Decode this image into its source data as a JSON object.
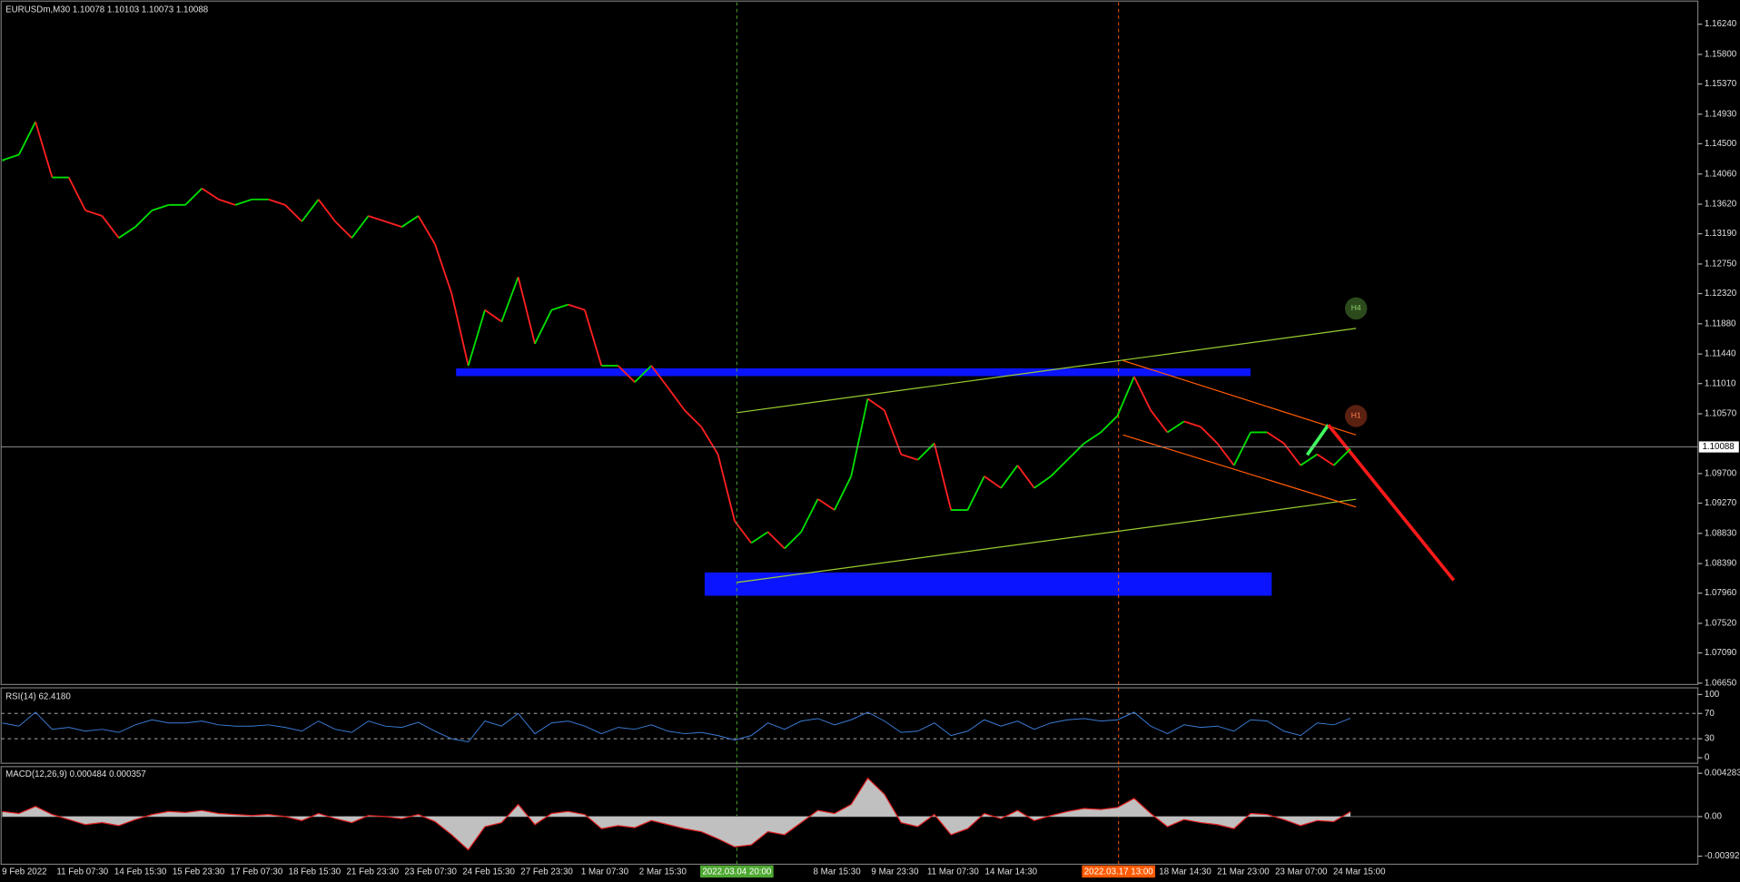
{
  "chart_data": [
    {
      "type": "line",
      "title": "EURUSDm,M30  1.10078 1.10103 1.10073 1.10088",
      "up_color": "#00e000",
      "down_color": "#ff2020",
      "values": [
        1.1426,
        1.1434,
        1.1482,
        1.1401,
        1.1401,
        1.1353,
        1.1345,
        1.1313,
        1.1329,
        1.1353,
        1.1361,
        1.1361,
        1.1385,
        1.1369,
        1.1361,
        1.1369,
        1.1369,
        1.1361,
        1.1337,
        1.1369,
        1.1337,
        1.1313,
        1.1345,
        1.1337,
        1.1329,
        1.1345,
        1.1304,
        1.1232,
        1.1127,
        1.1208,
        1.1191,
        1.1256,
        1.1159,
        1.1208,
        1.1216,
        1.1208,
        1.1127,
        1.1127,
        1.1103,
        1.1127,
        1.1095,
        1.1062,
        1.1038,
        1.0998,
        1.0901,
        1.0869,
        1.0885,
        1.0861,
        1.0885,
        1.0933,
        1.0917,
        1.0966,
        1.1079,
        1.1062,
        1.0998,
        1.099,
        1.1014,
        1.0917,
        1.0917,
        1.0966,
        1.0949,
        1.0982,
        1.0949,
        1.0966,
        1.099,
        1.1014,
        1.103,
        1.1054,
        1.1111,
        1.1062,
        1.103,
        1.1046,
        1.1038,
        1.1014,
        1.0982,
        1.103,
        1.103,
        1.1014,
        1.0982,
        1.0998,
        1.0982,
        1.1006
      ],
      "ylim": [
        1.0663,
        1.1656
      ],
      "yticks": [
        {
          "value": 1.1624,
          "label": "1.16240"
        },
        {
          "value": 1.158,
          "label": "1.15800"
        },
        {
          "value": 1.1537,
          "label": "1.15370"
        },
        {
          "value": 1.1493,
          "label": "1.14930"
        },
        {
          "value": 1.145,
          "label": "1.14500"
        },
        {
          "value": 1.1406,
          "label": "1.14060"
        },
        {
          "value": 1.1362,
          "label": "1.13620"
        },
        {
          "value": 1.1319,
          "label": "1.13190"
        },
        {
          "value": 1.1275,
          "label": "1.12750"
        },
        {
          "value": 1.1232,
          "label": "1.12320"
        },
        {
          "value": 1.1188,
          "label": "1.11880"
        },
        {
          "value": 1.1144,
          "label": "1.11440"
        },
        {
          "value": 1.1101,
          "label": "1.11010"
        },
        {
          "value": 1.1057,
          "label": "1.10570"
        },
        {
          "value": 1.097,
          "label": "1.09700"
        },
        {
          "value": 1.0927,
          "label": "1.09270"
        },
        {
          "value": 1.0883,
          "label": "1.08830"
        },
        {
          "value": 1.0839,
          "label": "1.08390"
        },
        {
          "value": 1.0796,
          "label": "1.07960"
        },
        {
          "value": 1.0752,
          "label": "1.07520"
        },
        {
          "value": 1.0709,
          "label": "1.07090"
        },
        {
          "value": 1.0665,
          "label": "1.06650"
        }
      ],
      "last_price": {
        "value": 1.10088,
        "label": "1.10088"
      },
      "x_labels": [
        "9 Feb 2022",
        "11 Feb 07:30",
        "14 Feb 15:30",
        "15 Feb 23:30",
        "17 Feb 07:30",
        "18 Feb 15:30",
        "21 Feb 23:30",
        "23 Feb 07:30",
        "24 Feb 15:30",
        "27 Feb 23:30",
        "1 Mar 07:30",
        "2 Mar 15:30",
        null,
        null,
        "8 Mar 15:30",
        "9 Mar 23:30",
        "11 Mar 07:30",
        "14 Mar 14:30",
        null,
        null,
        "18 Mar 14:30",
        "21 Mar 23:00",
        "23 Mar 07:00",
        "24 Mar 15:00"
      ],
      "markers": [
        {
          "label": "2022.03.04 20:00",
          "color": "#4ea832"
        },
        {
          "label": "2022.03.17 13:00",
          "color": "#ff5a00"
        }
      ],
      "badges": [
        "H4",
        "H1"
      ]
    },
    {
      "type": "line",
      "title": "RSI(14) 62.4180",
      "color": "#3a7bd5",
      "values": [
        55,
        50,
        72,
        45,
        48,
        42,
        45,
        40,
        52,
        60,
        55,
        55,
        58,
        52,
        50,
        50,
        52,
        48,
        42,
        58,
        45,
        40,
        58,
        50,
        48,
        56,
        42,
        30,
        25,
        58,
        50,
        70,
        38,
        55,
        58,
        50,
        38,
        48,
        45,
        52,
        42,
        38,
        40,
        35,
        28,
        35,
        55,
        45,
        58,
        62,
        52,
        60,
        72,
        58,
        40,
        42,
        55,
        35,
        42,
        60,
        50,
        58,
        45,
        55,
        60,
        62,
        58,
        60,
        72,
        50,
        38,
        52,
        48,
        50,
        42,
        60,
        58,
        42,
        35,
        55,
        52,
        62.418
      ],
      "ylim": [
        -8.8,
        110.5
      ],
      "yticks": [
        100,
        70,
        30,
        0
      ]
    },
    {
      "type": "area",
      "title": "MACD(12,26,9) 0.000484 0.000357",
      "color": "#c0c0c0",
      "line_color": "#e02020",
      "values": [
        0.0005,
        0.0003,
        0.001,
        0.0002,
        -0.0003,
        -0.0008,
        -0.0006,
        -0.0009,
        -0.0003,
        0.0002,
        0.0005,
        0.0004,
        0.0006,
        0.0003,
        0.0002,
        0.0001,
        0.0002,
        0,
        -0.0004,
        0.0003,
        -0.0002,
        -0.0006,
        0.0001,
        0,
        -0.0002,
        0.0002,
        -0.0005,
        -0.0018,
        -0.0033,
        -0.001,
        -0.0006,
        0.0012,
        -0.0008,
        0.0003,
        0.0005,
        0.0002,
        -0.0012,
        -0.0009,
        -0.0011,
        -0.0004,
        -0.0008,
        -0.0012,
        -0.0015,
        -0.0022,
        -0.003,
        -0.0028,
        -0.0015,
        -0.0018,
        -0.0006,
        0.0006,
        0.0003,
        0.0012,
        0.0038,
        0.0022,
        -0.0006,
        -0.001,
        0.0002,
        -0.0018,
        -0.0012,
        0.0003,
        -0.0002,
        0.0006,
        -0.0004,
        0.0001,
        0.0005,
        0.0008,
        0.0007,
        0.0009,
        0.0018,
        0.0003,
        -0.001,
        -0.0003,
        -0.0006,
        -0.0008,
        -0.0012,
        0.0003,
        0.0002,
        -0.0003,
        -0.0009,
        -0.0004,
        -0.0005,
        0.000484
      ],
      "ylim": [
        -0.00472,
        0.00494
      ],
      "yticks": [
        0.004283,
        {
          "value": 0,
          "label": "0.00"
        },
        -0.003921
      ]
    }
  ]
}
